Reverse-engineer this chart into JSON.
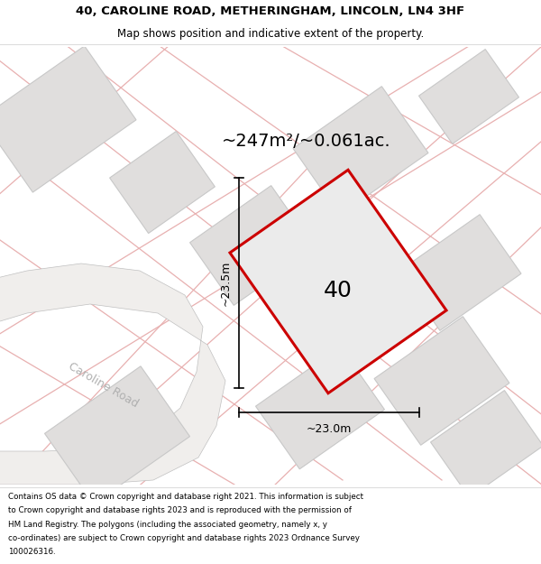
{
  "title_line1": "40, CAROLINE ROAD, METHERINGHAM, LINCOLN, LN4 3HF",
  "title_line2": "Map shows position and indicative extent of the property.",
  "area_text": "~247m²/~0.061ac.",
  "property_number": "40",
  "dim_vertical": "~23.5m",
  "dim_horizontal": "~23.0m",
  "road_label": "Caroline Road",
  "footer_text": "Contains OS data © Crown copyright and database right 2021. This information is subject to Crown copyright and database rights 2023 and is reproduced with the permission of HM Land Registry. The polygons (including the associated geometry, namely x, y co-ordinates) are subject to Crown copyright and database rights 2023 Ordnance Survey 100026316.",
  "map_bg": "#f7f6f4",
  "building_fill": "#e0dedd",
  "building_edge": "#c8c8c8",
  "pink_line_color": "#e8b0b0",
  "red_edge": "#cc0000",
  "header_bg": "#ffffff",
  "footer_bg": "#ffffff",
  "road_fill": "#f0eeec"
}
